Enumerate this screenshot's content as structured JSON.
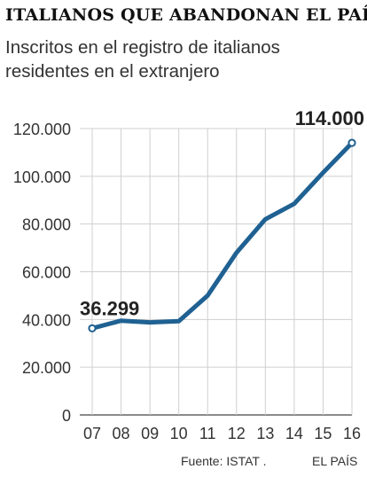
{
  "chart_data": {
    "type": "line",
    "title": "ITALIANOS QUE ABANDONAN EL PAÍS",
    "subtitle": "Inscritos en el registro de italianos residentes en el extranjero",
    "xlabel": "",
    "ylabel": "",
    "categories": [
      "07",
      "08",
      "09",
      "10",
      "11",
      "12",
      "13",
      "14",
      "15",
      "16"
    ],
    "series": [
      {
        "values": [
          36299,
          39500,
          38800,
          39300,
          50000,
          68000,
          82000,
          88500,
          101500,
          114000
        ]
      }
    ],
    "ylim": [
      0,
      120000
    ],
    "yticks": [
      "0",
      "20.000",
      "40.000",
      "60.000",
      "80.000",
      "100.000",
      "120.000"
    ],
    "ytick_values": [
      0,
      20000,
      40000,
      60000,
      80000,
      100000,
      120000
    ],
    "annotations": {
      "start_label": "36.299",
      "end_label": "114.000"
    },
    "grid": true,
    "line_color": "#1f6192"
  },
  "footer": {
    "source": "Fuente: ISTAT .",
    "brand": "EL PAÍS"
  }
}
